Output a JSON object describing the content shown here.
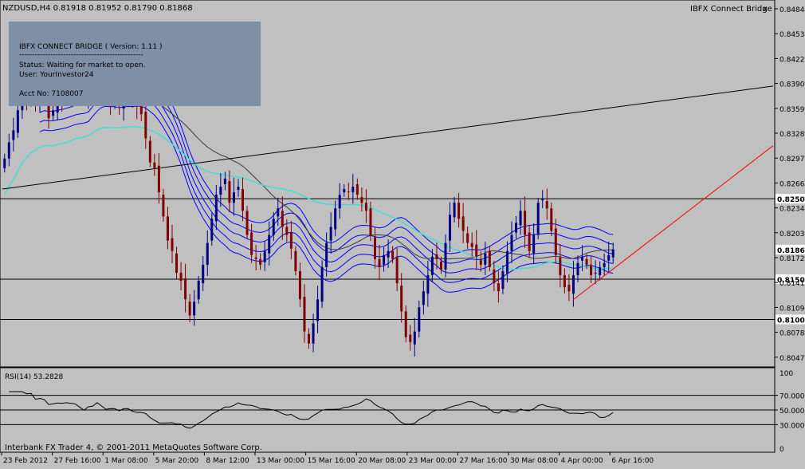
{
  "window": {
    "symbol_header": "NZDUSD,H4  0.81918 0.81952 0.81790 0.81868",
    "close_label": "x",
    "expert_name": "IBFX Connect Bridge",
    "copyright": "Interbank FX Trader 4, © 2001-2011 MetaQuotes Software Corp."
  },
  "info_panel": {
    "title_line": "IBFX CONNECT BRIDGE ( Version: 1.11 )",
    "separator": "------------------------------------------------",
    "status_line": "Status:  Waiting for market to open.",
    "user_line": "User:  YourInvestor24",
    "acct_line": "Acct No:  7108007",
    "bg_color": "#7f8fa6"
  },
  "colors": {
    "background": "#c0c0c0",
    "bull_candle": "#000080",
    "bear_candle": "#800000",
    "envelope": "#0000ff",
    "slow_ma": "#3a3a3a",
    "long_ma": "#40e0d0",
    "trendline_up": "#ff0000",
    "trendline_long": "#000000",
    "hline": "#000000",
    "rsi_line": "#000000",
    "text": "#000000",
    "price_marker_bg": "#ffffff"
  },
  "chart_data": {
    "type": "candlestick",
    "price_ticks": [
      "0.84845",
      "0.84530",
      "0.84220",
      "0.83905",
      "0.83595",
      "0.83285",
      "0.82970",
      "0.82660",
      "0.82345",
      "0.82035",
      "0.81720",
      "0.81410",
      "0.81095",
      "0.80785",
      "0.80475"
    ],
    "ylim": [
      0.8041,
      0.8491
    ],
    "current_price": "0.81868",
    "horizontal_levels": [
      {
        "value": 0.825,
        "label": "0.82503"
      },
      {
        "value": 0.815,
        "label": "0.81500"
      },
      {
        "value": 0.81,
        "label": "0.81000"
      }
    ],
    "trendlines": [
      {
        "name": "long",
        "from": [
          0,
          0.8262
        ],
        "to": [
          1,
          0.839
        ]
      },
      {
        "name": "up",
        "from": [
          0.74,
          0.8124
        ],
        "to": [
          1,
          0.8316
        ]
      }
    ],
    "x_tick_labels": [
      "23 Feb 2012",
      "27 Feb 16:00",
      "1 Mar 08:00",
      "5 Mar 20:00",
      "8 Mar 12:00",
      "13 Mar 00:00",
      "15 Mar 16:00",
      "20 Mar 08:00",
      "23 Mar 00:00",
      "27 Mar 16:00",
      "30 Mar 08:00",
      "4 Apr 00:00",
      "6 Apr 16:00"
    ],
    "closes": [
      0.83,
      0.832,
      0.8335,
      0.836,
      0.838,
      0.8375,
      0.839,
      0.837,
      0.8385,
      0.838,
      0.835,
      0.836,
      0.8375,
      0.8372,
      0.8382,
      0.8392,
      0.8398,
      0.8388,
      0.8378,
      0.8408,
      0.8432,
      0.8448,
      0.8428,
      0.8388,
      0.8368,
      0.8375,
      0.8365,
      0.8388,
      0.8398,
      0.8375,
      0.8365,
      0.8355,
      0.8325,
      0.8295,
      0.8288,
      0.8258,
      0.8228,
      0.8198,
      0.8185,
      0.8158,
      0.8148,
      0.8125,
      0.8105,
      0.8122,
      0.8148,
      0.8168,
      0.8195,
      0.8225,
      0.8255,
      0.8265,
      0.8275,
      0.8245,
      0.8258,
      0.8265,
      0.8235,
      0.8205,
      0.818,
      0.8175,
      0.8168,
      0.8185,
      0.8205,
      0.8225,
      0.8238,
      0.8215,
      0.8205,
      0.8188,
      0.816,
      0.8125,
      0.8085,
      0.807,
      0.8095,
      0.8125,
      0.8165,
      0.8195,
      0.8215,
      0.8238,
      0.8255,
      0.8262,
      0.8258,
      0.8265,
      0.8255,
      0.8245,
      0.8235,
      0.8205,
      0.8175,
      0.8165,
      0.818,
      0.8185,
      0.8175,
      0.8145,
      0.811,
      0.8078,
      0.8072,
      0.8085,
      0.8115,
      0.8135,
      0.8155,
      0.8178,
      0.8175,
      0.8162,
      0.8195,
      0.823,
      0.8245,
      0.8225,
      0.821,
      0.8195,
      0.819,
      0.8178,
      0.8168,
      0.8182,
      0.8165,
      0.8145,
      0.8135,
      0.816,
      0.8185,
      0.8205,
      0.822,
      0.8235,
      0.8205,
      0.8185,
      0.8205,
      0.8245,
      0.825,
      0.8238,
      0.821,
      0.818,
      0.8155,
      0.814,
      0.8135,
      0.8155,
      0.817,
      0.8178,
      0.8168,
      0.8155,
      0.8158,
      0.8165,
      0.817,
      0.818,
      0.8187
    ],
    "rsi": {
      "label": "RSI(14) 53.2828",
      "period": 14,
      "current": 53.2828,
      "levels": [
        {
          "value": 70,
          "label": "70.0000"
        },
        {
          "value": 50,
          "label": "50.0000"
        },
        {
          "value": 30,
          "label": "30.0000"
        }
      ],
      "scale_labels": [
        "100",
        "0"
      ]
    }
  }
}
